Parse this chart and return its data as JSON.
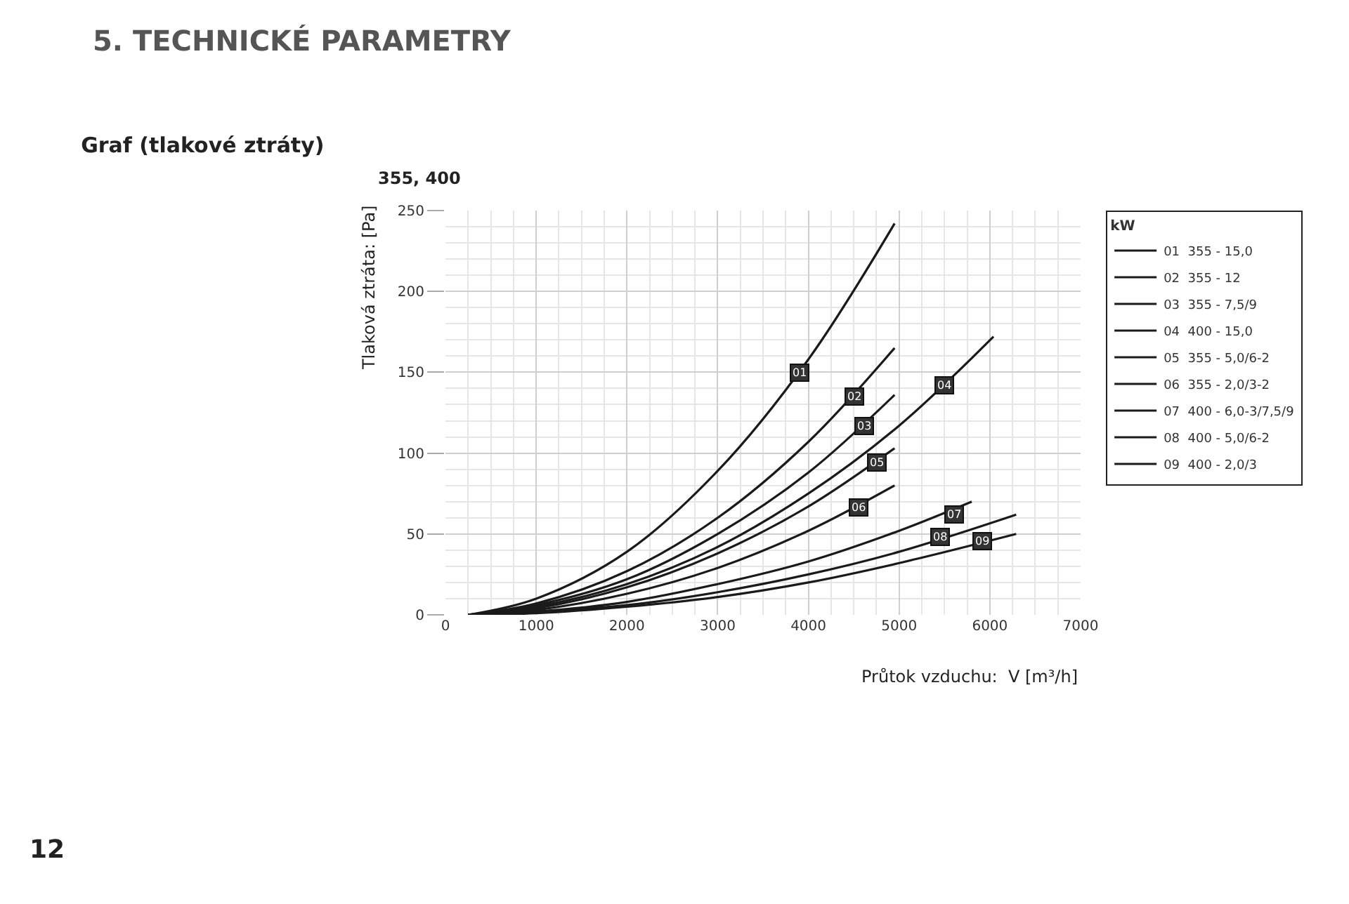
{
  "chart_data": {
    "type": "line",
    "title": "Graf (tlakové ztráty)",
    "subtitle": "355, 400",
    "xlabel": "Průtok vzduchu:  V [m³/h]",
    "ylabel": "Tlaková ztráta: [Pa]",
    "legend_title": "kW",
    "xlim": [
      0,
      7000
    ],
    "xticks": [
      0,
      1000,
      2000,
      3000,
      4000,
      5000,
      6000,
      7000
    ],
    "ylim": [
      0,
      250
    ],
    "yticks": [
      0,
      50,
      100,
      150,
      200,
      250
    ],
    "grid": true,
    "legend": "right",
    "marker": "none",
    "line_style": "solid",
    "series": [
      {
        "name": "01  355 - 15,0",
        "color": "#1a1a1a",
        "x": [
          250,
          1000,
          2000,
          3000,
          4000,
          4950
        ],
        "values": [
          0,
          10,
          39,
          89,
          158,
          242
        ]
      },
      {
        "name": "02  355 - 12",
        "color": "#1a1a1a",
        "x": [
          250,
          1000,
          2000,
          3000,
          4000,
          4950
        ],
        "values": [
          0,
          7,
          27,
          60,
          107,
          165
        ]
      },
      {
        "name": "03  355 - 7,5/9",
        "color": "#1a1a1a",
        "x": [
          250,
          1000,
          2000,
          3000,
          4000,
          4950
        ],
        "values": [
          0,
          6,
          22,
          50,
          88,
          136
        ]
      },
      {
        "name": "04  400 - 15,0",
        "color": "#1a1a1a",
        "x": [
          250,
          1000,
          2000,
          3000,
          4000,
          5000,
          6040
        ],
        "values": [
          0,
          5,
          19,
          42,
          75,
          117,
          172
        ]
      },
      {
        "name": "05  355 - 5,0/6-2",
        "color": "#1a1a1a",
        "x": [
          250,
          1000,
          2000,
          3000,
          4000,
          4950
        ],
        "values": [
          0,
          4,
          17,
          38,
          67,
          103
        ]
      },
      {
        "name": "06  355 - 2,0/3-2",
        "color": "#1a1a1a",
        "x": [
          250,
          1000,
          2000,
          3000,
          4000,
          4950
        ],
        "values": [
          0,
          3,
          13,
          29,
          52,
          80
        ]
      },
      {
        "name": "07  400 - 6,0-3/7,5/9",
        "color": "#1a1a1a",
        "x": [
          250,
          1000,
          2000,
          3000,
          4000,
          5000,
          5800
        ],
        "values": [
          0,
          2,
          8,
          19,
          33,
          52,
          70
        ]
      },
      {
        "name": "08  400 - 5,0/6-2",
        "color": "#1a1a1a",
        "x": [
          250,
          1000,
          2000,
          3000,
          4000,
          5000,
          6290
        ],
        "values": [
          0,
          2,
          6,
          14,
          25,
          39,
          62
        ]
      },
      {
        "name": "09  400 - 2,0/3",
        "color": "#1a1a1a",
        "x": [
          250,
          1000,
          2000,
          3000,
          4000,
          5000,
          6290
        ],
        "values": [
          0,
          1,
          5,
          11,
          20,
          32,
          50
        ]
      }
    ],
    "annotations": [
      "5. TECHNICKÉ PARAMETRY",
      "12",
      {
        "text": "01",
        "x": 3900,
        "y": 150
      },
      {
        "text": "02",
        "x": 4500,
        "y": 135
      },
      {
        "text": "03",
        "x": 4620,
        "y": 117
      },
      {
        "text": "04",
        "x": 5500,
        "y": 142
      },
      {
        "text": "05",
        "x": 4750,
        "y": 94
      },
      {
        "text": "06",
        "x": 4550,
        "y": 66
      },
      {
        "text": "07",
        "x": 5600,
        "y": 62
      },
      {
        "text": "08",
        "x": 5450,
        "y": 48
      },
      {
        "text": "09",
        "x": 5920,
        "y": 46
      }
    ]
  }
}
